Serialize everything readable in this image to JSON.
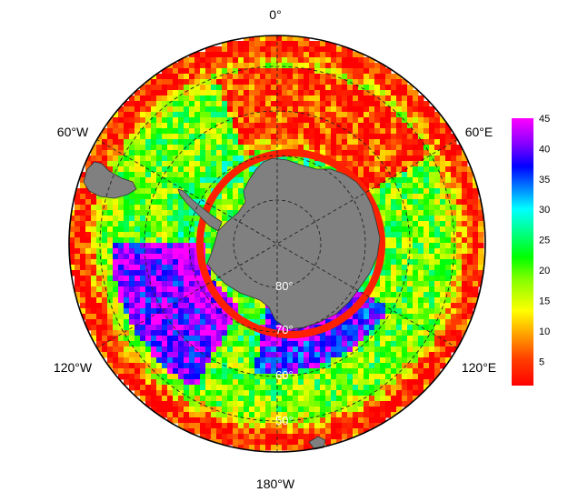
{
  "map": {
    "projection": "south-polar-stereographic",
    "longitude_labels": {
      "top": "0°",
      "left_upper": "60°W",
      "right_upper": "60°E",
      "left_lower": "120°W",
      "right_lower": "120°E",
      "bottom": "180°W"
    },
    "latitude_labels": [
      "80°",
      "70°",
      "60°",
      "50°"
    ],
    "gridlines": "dashed",
    "land_color": "#808080",
    "ocean_field_palette": "rainbow (red → yellow → green → cyan → blue → purple → magenta)"
  },
  "colorbar": {
    "min": 1,
    "max": 45,
    "ticks": [
      "45",
      "40",
      "35",
      "30",
      "25",
      "20",
      "15",
      "10",
      "5"
    ],
    "colors": [
      "#ff0000",
      "#ffa500",
      "#ffff00",
      "#00ff00",
      "#00ffff",
      "#0000ff",
      "#8000ff",
      "#ff00ff"
    ]
  }
}
